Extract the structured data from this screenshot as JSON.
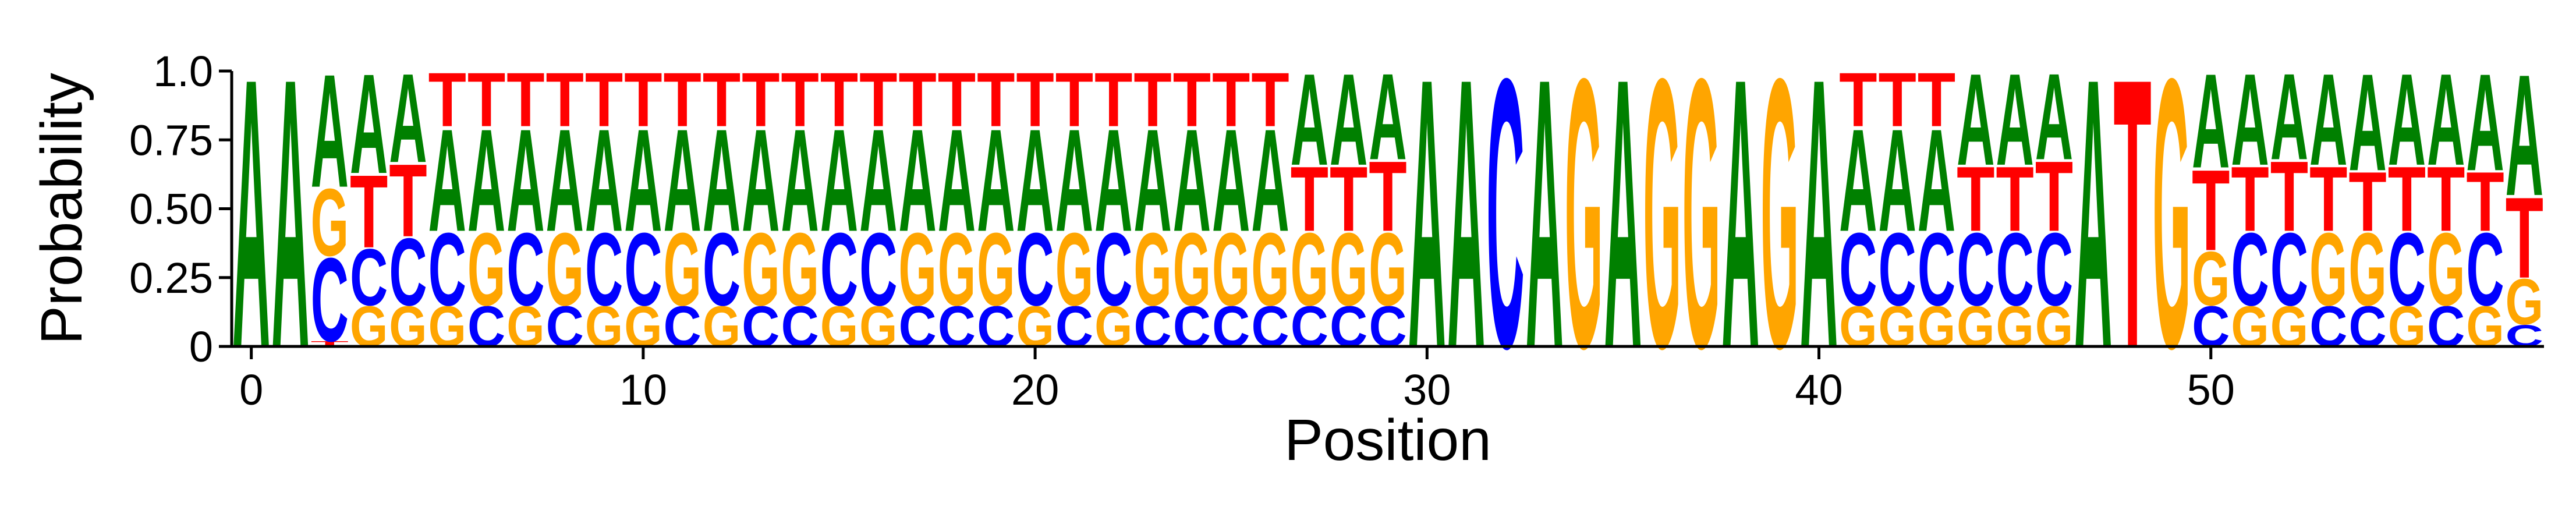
{
  "chart_data": {
    "type": "sequence-logo",
    "xlabel": "Position",
    "ylabel": "Probability",
    "xlim": [
      -0.5,
      58.5
    ],
    "ylim": [
      0,
      1
    ],
    "x_ticks": [
      0,
      10,
      20,
      30,
      40,
      50
    ],
    "x_tick_labels": [
      "0",
      "10",
      "20",
      "30",
      "40",
      "50"
    ],
    "y_ticks": [
      0,
      0.25,
      0.5,
      0.75,
      1.0
    ],
    "y_tick_labels": [
      "0",
      "0.25",
      "0.50",
      "0.75",
      "1.0"
    ],
    "colors": {
      "A": "#008000",
      "C": "#0000ff",
      "G": "#ffa500",
      "T": "#ff0000"
    },
    "positions": [
      {
        "pos": 0,
        "stack": [
          [
            "A",
            1.0
          ]
        ]
      },
      {
        "pos": 1,
        "stack": [
          [
            "A",
            1.0
          ]
        ]
      },
      {
        "pos": 2,
        "stack": [
          [
            "T",
            0.02
          ],
          [
            "C",
            0.31
          ],
          [
            "G",
            0.25
          ],
          [
            "A",
            0.42
          ]
        ]
      },
      {
        "pos": 3,
        "stack": [
          [
            "G",
            0.15
          ],
          [
            "C",
            0.21
          ],
          [
            "T",
            0.27
          ],
          [
            "A",
            0.37
          ]
        ]
      },
      {
        "pos": 4,
        "stack": [
          [
            "G",
            0.15
          ],
          [
            "C",
            0.25
          ],
          [
            "T",
            0.27
          ],
          [
            "A",
            0.33
          ]
        ]
      },
      {
        "pos": 5,
        "stack": [
          [
            "G",
            0.15
          ],
          [
            "C",
            0.27
          ],
          [
            "A",
            0.38
          ],
          [
            "T",
            0.2
          ]
        ]
      },
      {
        "pos": 6,
        "stack": [
          [
            "C",
            0.15
          ],
          [
            "G",
            0.27
          ],
          [
            "A",
            0.38
          ],
          [
            "T",
            0.2
          ]
        ]
      },
      {
        "pos": 7,
        "stack": [
          [
            "G",
            0.15
          ],
          [
            "C",
            0.27
          ],
          [
            "A",
            0.38
          ],
          [
            "T",
            0.2
          ]
        ]
      },
      {
        "pos": 8,
        "stack": [
          [
            "C",
            0.15
          ],
          [
            "G",
            0.27
          ],
          [
            "A",
            0.38
          ],
          [
            "T",
            0.2
          ]
        ]
      },
      {
        "pos": 9,
        "stack": [
          [
            "G",
            0.15
          ],
          [
            "C",
            0.27
          ],
          [
            "A",
            0.38
          ],
          [
            "T",
            0.2
          ]
        ]
      },
      {
        "pos": 10,
        "stack": [
          [
            "G",
            0.15
          ],
          [
            "C",
            0.27
          ],
          [
            "A",
            0.38
          ],
          [
            "T",
            0.2
          ]
        ]
      },
      {
        "pos": 11,
        "stack": [
          [
            "C",
            0.15
          ],
          [
            "G",
            0.27
          ],
          [
            "A",
            0.38
          ],
          [
            "T",
            0.2
          ]
        ]
      },
      {
        "pos": 12,
        "stack": [
          [
            "G",
            0.15
          ],
          [
            "C",
            0.27
          ],
          [
            "A",
            0.38
          ],
          [
            "T",
            0.2
          ]
        ]
      },
      {
        "pos": 13,
        "stack": [
          [
            "C",
            0.15
          ],
          [
            "G",
            0.27
          ],
          [
            "A",
            0.38
          ],
          [
            "T",
            0.2
          ]
        ]
      },
      {
        "pos": 14,
        "stack": [
          [
            "C",
            0.15
          ],
          [
            "G",
            0.27
          ],
          [
            "A",
            0.38
          ],
          [
            "T",
            0.2
          ]
        ]
      },
      {
        "pos": 15,
        "stack": [
          [
            "G",
            0.15
          ],
          [
            "C",
            0.27
          ],
          [
            "A",
            0.38
          ],
          [
            "T",
            0.2
          ]
        ]
      },
      {
        "pos": 16,
        "stack": [
          [
            "G",
            0.15
          ],
          [
            "C",
            0.27
          ],
          [
            "A",
            0.38
          ],
          [
            "T",
            0.2
          ]
        ]
      },
      {
        "pos": 17,
        "stack": [
          [
            "C",
            0.15
          ],
          [
            "G",
            0.27
          ],
          [
            "A",
            0.38
          ],
          [
            "T",
            0.2
          ]
        ]
      },
      {
        "pos": 18,
        "stack": [
          [
            "C",
            0.15
          ],
          [
            "G",
            0.27
          ],
          [
            "A",
            0.38
          ],
          [
            "T",
            0.2
          ]
        ]
      },
      {
        "pos": 19,
        "stack": [
          [
            "C",
            0.15
          ],
          [
            "G",
            0.27
          ],
          [
            "A",
            0.38
          ],
          [
            "T",
            0.2
          ]
        ]
      },
      {
        "pos": 20,
        "stack": [
          [
            "G",
            0.15
          ],
          [
            "C",
            0.27
          ],
          [
            "A",
            0.38
          ],
          [
            "T",
            0.2
          ]
        ]
      },
      {
        "pos": 21,
        "stack": [
          [
            "C",
            0.15
          ],
          [
            "G",
            0.27
          ],
          [
            "A",
            0.38
          ],
          [
            "T",
            0.2
          ]
        ]
      },
      {
        "pos": 22,
        "stack": [
          [
            "G",
            0.15
          ],
          [
            "C",
            0.27
          ],
          [
            "A",
            0.38
          ],
          [
            "T",
            0.2
          ]
        ]
      },
      {
        "pos": 23,
        "stack": [
          [
            "C",
            0.15
          ],
          [
            "G",
            0.27
          ],
          [
            "A",
            0.38
          ],
          [
            "T",
            0.2
          ]
        ]
      },
      {
        "pos": 24,
        "stack": [
          [
            "C",
            0.15
          ],
          [
            "G",
            0.27
          ],
          [
            "A",
            0.38
          ],
          [
            "T",
            0.2
          ]
        ]
      },
      {
        "pos": 25,
        "stack": [
          [
            "C",
            0.15
          ],
          [
            "G",
            0.27
          ],
          [
            "A",
            0.38
          ],
          [
            "T",
            0.2
          ]
        ]
      },
      {
        "pos": 26,
        "stack": [
          [
            "C",
            0.15
          ],
          [
            "G",
            0.27
          ],
          [
            "A",
            0.38
          ],
          [
            "T",
            0.2
          ]
        ]
      },
      {
        "pos": 27,
        "stack": [
          [
            "C",
            0.15
          ],
          [
            "G",
            0.27
          ],
          [
            "T",
            0.24
          ],
          [
            "A",
            0.34
          ]
        ]
      },
      {
        "pos": 28,
        "stack": [
          [
            "C",
            0.15
          ],
          [
            "G",
            0.27
          ],
          [
            "T",
            0.24
          ],
          [
            "A",
            0.34
          ]
        ]
      },
      {
        "pos": 29,
        "stack": [
          [
            "C",
            0.15
          ],
          [
            "G",
            0.27
          ],
          [
            "T",
            0.26
          ],
          [
            "A",
            0.32
          ]
        ]
      },
      {
        "pos": 30,
        "stack": [
          [
            "A",
            1.0
          ]
        ]
      },
      {
        "pos": 31,
        "stack": [
          [
            "A",
            1.0
          ]
        ]
      },
      {
        "pos": 32,
        "stack": [
          [
            "C",
            1.0
          ]
        ]
      },
      {
        "pos": 33,
        "stack": [
          [
            "A",
            1.0
          ]
        ]
      },
      {
        "pos": 34,
        "stack": [
          [
            "G",
            1.0
          ]
        ]
      },
      {
        "pos": 35,
        "stack": [
          [
            "A",
            1.0
          ]
        ]
      },
      {
        "pos": 36,
        "stack": [
          [
            "G",
            1.0
          ]
        ]
      },
      {
        "pos": 37,
        "stack": [
          [
            "G",
            1.0
          ]
        ]
      },
      {
        "pos": 38,
        "stack": [
          [
            "A",
            1.0
          ]
        ]
      },
      {
        "pos": 39,
        "stack": [
          [
            "G",
            1.0
          ]
        ]
      },
      {
        "pos": 40,
        "stack": [
          [
            "A",
            1.0
          ]
        ]
      },
      {
        "pos": 41,
        "stack": [
          [
            "G",
            0.15
          ],
          [
            "C",
            0.27
          ],
          [
            "A",
            0.38
          ],
          [
            "T",
            0.2
          ]
        ]
      },
      {
        "pos": 42,
        "stack": [
          [
            "G",
            0.15
          ],
          [
            "C",
            0.27
          ],
          [
            "A",
            0.38
          ],
          [
            "T",
            0.2
          ]
        ]
      },
      {
        "pos": 43,
        "stack": [
          [
            "G",
            0.15
          ],
          [
            "C",
            0.27
          ],
          [
            "A",
            0.38
          ],
          [
            "T",
            0.2
          ]
        ]
      },
      {
        "pos": 44,
        "stack": [
          [
            "G",
            0.15
          ],
          [
            "C",
            0.27
          ],
          [
            "T",
            0.24
          ],
          [
            "A",
            0.34
          ]
        ]
      },
      {
        "pos": 45,
        "stack": [
          [
            "G",
            0.15
          ],
          [
            "C",
            0.27
          ],
          [
            "T",
            0.24
          ],
          [
            "A",
            0.34
          ]
        ]
      },
      {
        "pos": 46,
        "stack": [
          [
            "G",
            0.15
          ],
          [
            "C",
            0.27
          ],
          [
            "T",
            0.26
          ],
          [
            "A",
            0.32
          ]
        ]
      },
      {
        "pos": 47,
        "stack": [
          [
            "A",
            1.0
          ]
        ]
      },
      {
        "pos": 48,
        "stack": [
          [
            "T",
            1.0
          ]
        ]
      },
      {
        "pos": 49,
        "stack": [
          [
            "G",
            1.0
          ]
        ]
      },
      {
        "pos": 50,
        "stack": [
          [
            "C",
            0.15
          ],
          [
            "G",
            0.2
          ],
          [
            "T",
            0.3
          ],
          [
            "A",
            0.35
          ]
        ]
      },
      {
        "pos": 51,
        "stack": [
          [
            "G",
            0.15
          ],
          [
            "C",
            0.27
          ],
          [
            "T",
            0.24
          ],
          [
            "A",
            0.34
          ]
        ]
      },
      {
        "pos": 52,
        "stack": [
          [
            "G",
            0.15
          ],
          [
            "C",
            0.27
          ],
          [
            "T",
            0.26
          ],
          [
            "A",
            0.32
          ]
        ]
      },
      {
        "pos": 53,
        "stack": [
          [
            "C",
            0.15
          ],
          [
            "G",
            0.27
          ],
          [
            "T",
            0.24
          ],
          [
            "A",
            0.34
          ]
        ]
      },
      {
        "pos": 54,
        "stack": [
          [
            "C",
            0.15
          ],
          [
            "G",
            0.27
          ],
          [
            "T",
            0.22
          ],
          [
            "A",
            0.36
          ]
        ]
      },
      {
        "pos": 55,
        "stack": [
          [
            "G",
            0.15
          ],
          [
            "C",
            0.27
          ],
          [
            "T",
            0.24
          ],
          [
            "A",
            0.34
          ]
        ]
      },
      {
        "pos": 56,
        "stack": [
          [
            "C",
            0.15
          ],
          [
            "G",
            0.27
          ],
          [
            "T",
            0.24
          ],
          [
            "A",
            0.34
          ]
        ]
      },
      {
        "pos": 57,
        "stack": [
          [
            "G",
            0.15
          ],
          [
            "C",
            0.27
          ],
          [
            "T",
            0.22
          ],
          [
            "A",
            0.36
          ]
        ]
      },
      {
        "pos": 58,
        "stack": [
          [
            "C",
            0.08
          ],
          [
            "G",
            0.17
          ],
          [
            "T",
            0.3
          ],
          [
            "A",
            0.45
          ]
        ]
      }
    ]
  }
}
